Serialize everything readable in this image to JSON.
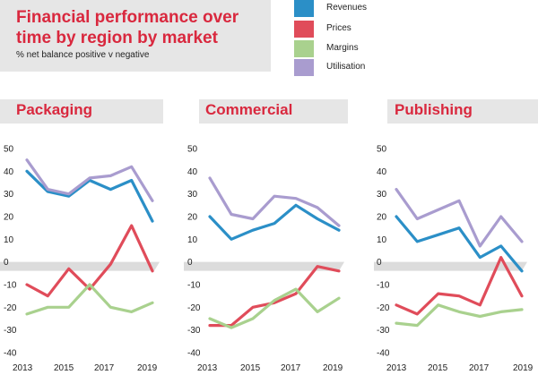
{
  "header": {
    "title": "Financial performance over time by region by market",
    "subtitle": "% net balance positive v negative"
  },
  "legend": {
    "items": [
      {
        "label": "Revenues",
        "color": "#2b8fc7"
      },
      {
        "label": "Prices",
        "color": "#e04c5a"
      },
      {
        "label": "Margins",
        "color": "#a9d18e"
      },
      {
        "label": "Utilisation",
        "color": "#a99ccf"
      }
    ]
  },
  "colors": {
    "revenues": "#2b8fc7",
    "prices": "#e04c5a",
    "margins": "#a9d18e",
    "utilisation": "#a99ccf",
    "band": "#dcdcdc",
    "accent": "#d9283e"
  },
  "chart_data": [
    {
      "type": "line",
      "title": "Packaging",
      "x": [
        2013,
        2014,
        2015,
        2016,
        2017,
        2018,
        2019
      ],
      "xticks": [
        "2013",
        "2015",
        "2017",
        "2019"
      ],
      "yticks": [
        50,
        40,
        30,
        20,
        10,
        0,
        -10,
        -20,
        -30,
        -40
      ],
      "ylim": [
        -40,
        50
      ],
      "series": [
        {
          "name": "Revenues",
          "values": [
            40,
            31,
            29,
            36,
            32,
            36,
            18
          ]
        },
        {
          "name": "Prices",
          "values": [
            -10,
            -15,
            -3,
            -12,
            -1,
            16,
            -4
          ]
        },
        {
          "name": "Margins",
          "values": [
            -23,
            -20,
            -20,
            -10,
            -20,
            -22,
            -18
          ]
        },
        {
          "name": "Utilisation",
          "values": [
            45,
            32,
            30,
            37,
            38,
            42,
            27
          ]
        }
      ]
    },
    {
      "type": "line",
      "title": "Commercial",
      "x": [
        2013,
        2014,
        2015,
        2016,
        2017,
        2018,
        2019
      ],
      "xticks": [
        "2013",
        "2015",
        "2017",
        "2019"
      ],
      "yticks": [
        50,
        40,
        30,
        20,
        10,
        0,
        -10,
        -20,
        -30,
        -40
      ],
      "ylim": [
        -40,
        50
      ],
      "series": [
        {
          "name": "Revenues",
          "values": [
            20,
            10,
            14,
            17,
            25,
            19,
            14
          ]
        },
        {
          "name": "Prices",
          "values": [
            -28,
            -28,
            -20,
            -18,
            -14,
            -2,
            -4
          ]
        },
        {
          "name": "Margins",
          "values": [
            -25,
            -29,
            -25,
            -17,
            -12,
            -22,
            -16
          ]
        },
        {
          "name": "Utilisation",
          "values": [
            37,
            21,
            19,
            29,
            28,
            24,
            16
          ]
        }
      ]
    },
    {
      "type": "line",
      "title": "Publishing",
      "x": [
        2013,
        2014,
        2015,
        2016,
        2017,
        2018,
        2019
      ],
      "xticks": [
        "2013",
        "2015",
        "2017",
        "2019"
      ],
      "yticks": [
        50,
        40,
        30,
        20,
        10,
        0,
        -10,
        -20,
        -30,
        -40
      ],
      "ylim": [
        -40,
        50
      ],
      "series": [
        {
          "name": "Revenues",
          "values": [
            20,
            9,
            12,
            15,
            2,
            7,
            -4
          ]
        },
        {
          "name": "Prices",
          "values": [
            -19,
            -23,
            -14,
            -15,
            -19,
            2,
            -15
          ]
        },
        {
          "name": "Margins",
          "values": [
            -27,
            -28,
            -19,
            -22,
            -24,
            -22,
            -21
          ]
        },
        {
          "name": "Utilisation",
          "values": [
            32,
            19,
            23,
            27,
            7,
            20,
            9
          ]
        }
      ]
    }
  ]
}
